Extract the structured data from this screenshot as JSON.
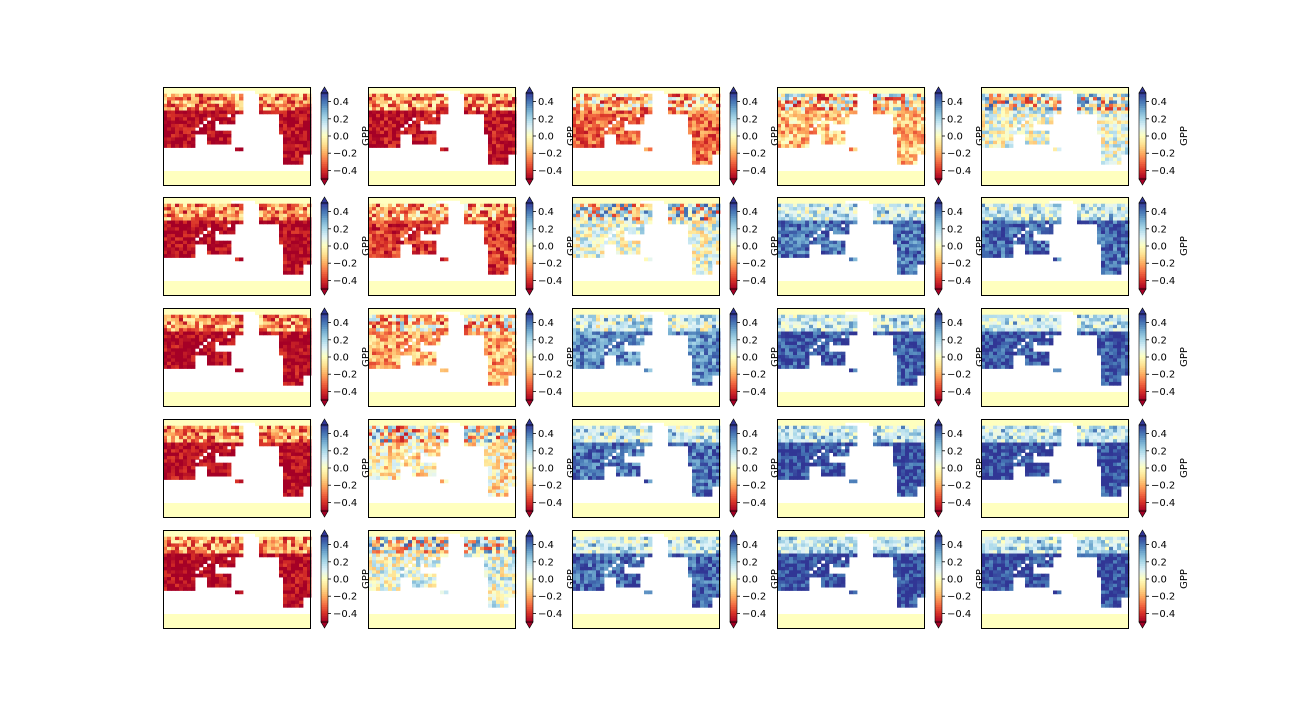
{
  "figure": {
    "rows": 5,
    "cols": 5,
    "colormap": "RdYlBu",
    "colormap_stops": [
      "#a50026",
      "#d73027",
      "#f46d43",
      "#fdae61",
      "#fee090",
      "#ffffbf",
      "#e0f3f8",
      "#abd9e9",
      "#74add1",
      "#4575b4",
      "#313695"
    ],
    "no_data_color": "#ffffff",
    "ocean_band_color": "#ffffbf"
  },
  "chart_data": {
    "type": "heatmap",
    "panels_note_values": "Per-panel mean GPP anomaly level (-0.5 to 0.5), row-major; maps estimated from image",
    "panel_levels": [
      [
        -0.48,
        -0.46,
        -0.3,
        -0.15,
        0.05
      ],
      [
        -0.48,
        -0.38,
        0.05,
        0.4,
        0.42
      ],
      [
        -0.48,
        -0.2,
        0.35,
        0.45,
        0.45
      ],
      [
        -0.48,
        -0.05,
        0.4,
        0.46,
        0.46
      ],
      [
        -0.48,
        0.05,
        0.42,
        0.47,
        0.47
      ]
    ],
    "colorbar": {
      "label": "GPP",
      "min": -0.5,
      "max": 0.5,
      "extend": "both",
      "ticks": [
        0.4,
        0.2,
        0.0,
        -0.2,
        -0.4
      ],
      "tick_labels": [
        "0.4",
        "0.2",
        "0.0",
        "−0.2",
        "−0.4"
      ]
    }
  }
}
